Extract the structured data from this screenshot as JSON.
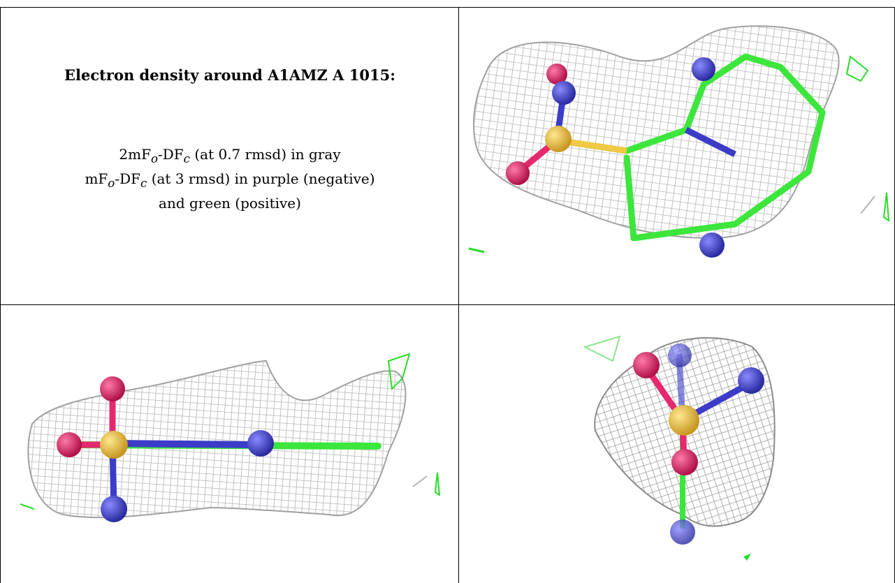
{
  "title": "Electron density around A1AMZ A 1015:",
  "caption": {
    "line1": {
      "prefix": "2mF",
      "sub1": "o",
      "mid": "-DF",
      "sub2": "c",
      "suffix": " (at 0.7 rmsd) in gray"
    },
    "line2": {
      "prefix": "mF",
      "sub1": "o",
      "mid": "-DF",
      "sub2": "c",
      "suffix": " (at 3 rmsd) in purple (negative)"
    },
    "line3": "and green (positive)"
  },
  "colors": {
    "mesh_gray": "#b4b4b4",
    "mesh_dark": "#8a8a8a",
    "carbon_green": "#3ce63c",
    "nitrogen_blue": "#3c3cc8",
    "oxygen_red": "#e6286e",
    "sulfur_yellow": "#f0c846",
    "positive_green": "#28dc28"
  },
  "panels": [
    {
      "name": "view-top-right",
      "icon": "electron-density-mesh-icon"
    },
    {
      "name": "view-bottom-left",
      "icon": "electron-density-mesh-icon"
    },
    {
      "name": "view-bottom-right",
      "icon": "electron-density-mesh-icon"
    }
  ]
}
